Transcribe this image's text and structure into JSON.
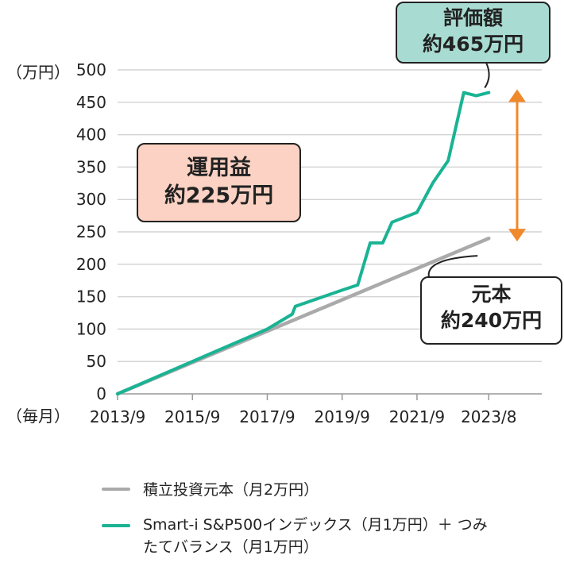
{
  "chart_data": {
    "type": "line",
    "y_unit_label": "（万円）",
    "x_unit_label": "（毎月）",
    "ylim": [
      0,
      500
    ],
    "yticks": [
      "0",
      "50",
      "100",
      "150",
      "200",
      "250",
      "300",
      "350",
      "400",
      "450",
      "500"
    ],
    "xlim": [
      "2013-09",
      "2025-01"
    ],
    "xticks": [
      {
        "label": "2013/9",
        "date": "2013-09"
      },
      {
        "label": "2015/9",
        "date": "2015-09"
      },
      {
        "label": "2017/9",
        "date": "2017-09"
      },
      {
        "label": "2019/9",
        "date": "2019-09"
      },
      {
        "label": "2021/9",
        "date": "2021-09"
      },
      {
        "label": "2023/8",
        "date": "2023-08"
      }
    ],
    "grid": "horizontal",
    "series": [
      {
        "name": "積立投資元本（月2万円）",
        "color": "#aaaaaa",
        "x": [
          "2013-09",
          "2023-08"
        ],
        "y": [
          0,
          240
        ]
      },
      {
        "name": "Smart-i S&P500インデックス（月1万円）＋ つみたてバランス（月1万円）",
        "color": "#1ab394",
        "x": [
          "2013-09",
          "2015-09",
          "2017-09",
          "2018-05",
          "2018-06",
          "2019-09",
          "2020-02",
          "2020-06",
          "2020-10",
          "2021-01",
          "2021-09",
          "2022-02",
          "2022-07",
          "2022-12",
          "2023-04",
          "2023-08"
        ],
        "y": [
          0,
          50,
          100,
          123,
          135,
          160,
          168,
          233,
          233,
          265,
          280,
          325,
          360,
          465,
          460,
          465
        ]
      }
    ],
    "annotations": {
      "valuation": {
        "line1": "評価額",
        "line2": "約465万円"
      },
      "profit": {
        "line1": "運用益",
        "line2": "約225万円"
      },
      "principal": {
        "line1": "元本",
        "line2": "約240万円"
      }
    },
    "arrow_color": "#f0892b",
    "legend_position": "bottom"
  },
  "callout_colors": {
    "valuation": "#a8dcd2",
    "profit": "#fbd2c3",
    "principal": "#ffffff"
  }
}
